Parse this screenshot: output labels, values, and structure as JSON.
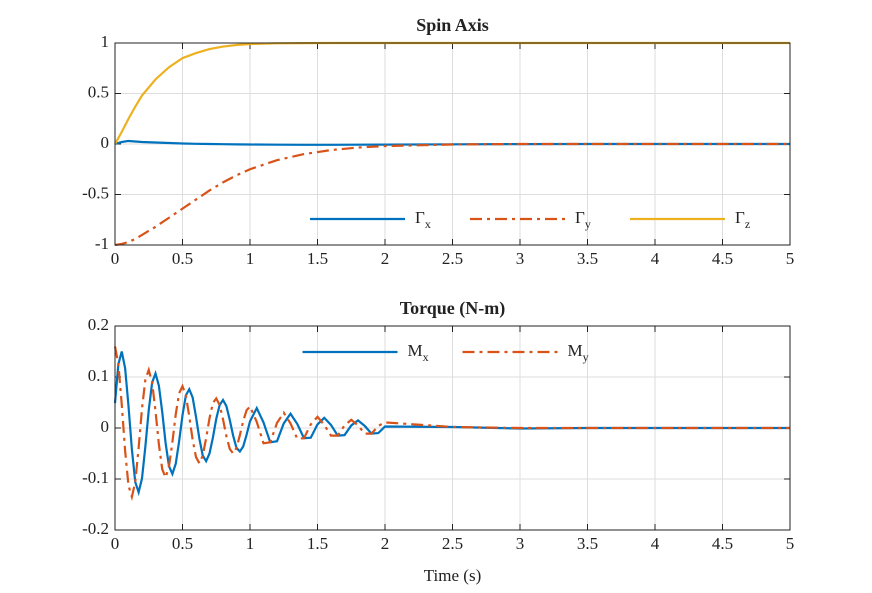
{
  "chart_data": [
    {
      "type": "line",
      "title": "Spin Axis",
      "x": [
        0,
        0.05,
        0.1,
        0.15,
        0.2,
        0.3,
        0.4,
        0.5,
        0.6,
        0.7,
        0.8,
        0.9,
        1,
        1.2,
        1.4,
        1.6,
        1.8,
        2,
        2.5,
        3,
        3.5,
        4,
        4.5,
        5
      ],
      "series": [
        {
          "name": "Γx",
          "color": "#0072BD",
          "style": "solid",
          "values": [
            0,
            0.02,
            0.03,
            0.025,
            0.02,
            0.015,
            0.01,
            0.005,
            0.002,
            0,
            -0.002,
            -0.004,
            -0.005,
            -0.007,
            -0.008,
            -0.008,
            -0.007,
            -0.006,
            -0.003,
            -0.001,
            0,
            0,
            0,
            0
          ]
        },
        {
          "name": "Γy",
          "color": "#D95319",
          "style": "dashdot",
          "values": [
            -1,
            -0.99,
            -0.97,
            -0.94,
            -0.9,
            -0.82,
            -0.73,
            -0.64,
            -0.55,
            -0.46,
            -0.38,
            -0.31,
            -0.25,
            -0.16,
            -0.1,
            -0.06,
            -0.035,
            -0.02,
            -0.005,
            0,
            0,
            0,
            0,
            0
          ]
        },
        {
          "name": "Γz",
          "color": "#EDB120",
          "style": "solid",
          "values": [
            0,
            0.12,
            0.25,
            0.37,
            0.48,
            0.64,
            0.76,
            0.85,
            0.9,
            0.94,
            0.965,
            0.98,
            0.99,
            0.997,
            0.999,
            1,
            1,
            1,
            1,
            1,
            1,
            1,
            1,
            1
          ]
        }
      ],
      "xlim": [
        0,
        5
      ],
      "xticks": [
        0,
        0.5,
        1,
        1.5,
        2,
        2.5,
        3,
        3.5,
        4,
        4.5,
        5
      ],
      "ylim": [
        -1,
        1
      ],
      "yticks": [
        -1,
        -0.5,
        0,
        0.5,
        1
      ],
      "grid": true,
      "legend": "south-east"
    },
    {
      "type": "line",
      "title": "Torque (N-m)",
      "xlabel": "Time (s)",
      "x": [
        0,
        0.025,
        0.05,
        0.075,
        0.1,
        0.125,
        0.15,
        0.175,
        0.2,
        0.225,
        0.25,
        0.275,
        0.3,
        0.325,
        0.35,
        0.375,
        0.4,
        0.425,
        0.45,
        0.475,
        0.5,
        0.525,
        0.55,
        0.575,
        0.6,
        0.625,
        0.65,
        0.675,
        0.7,
        0.725,
        0.75,
        0.775,
        0.8,
        0.825,
        0.85,
        0.875,
        0.9,
        0.925,
        0.95,
        0.975,
        1,
        1.05,
        1.1,
        1.15,
        1.2,
        1.25,
        1.3,
        1.35,
        1.4,
        1.45,
        1.5,
        1.55,
        1.6,
        1.65,
        1.7,
        1.75,
        1.8,
        1.85,
        1.9,
        1.95,
        2,
        2.5,
        3,
        3.5,
        4,
        4.5,
        5
      ],
      "series": [
        {
          "name": "Mx",
          "color": "#0072BD",
          "style": "solid",
          "values": [
            0.049,
            0.125,
            0.15,
            0.117,
            0.043,
            -0.042,
            -0.106,
            -0.126,
            -0.099,
            -0.036,
            0.035,
            0.089,
            0.107,
            0.083,
            0.031,
            -0.03,
            -0.075,
            -0.09,
            -0.07,
            -0.026,
            0.025,
            0.064,
            0.076,
            0.06,
            0.022,
            -0.021,
            -0.054,
            -0.065,
            -0.05,
            -0.019,
            0.018,
            0.045,
            0.055,
            0.043,
            0.016,
            -0.015,
            -0.039,
            -0.046,
            -0.036,
            -0.013,
            0.013,
            0.039,
            0.011,
            -0.028,
            -0.026,
            0.009,
            0.028,
            0.008,
            -0.02,
            -0.019,
            0.007,
            0.02,
            0.006,
            -0.015,
            -0.014,
            0.005,
            0.015,
            0.004,
            -0.011,
            -0.01,
            0.003,
            0.002,
            -0.001,
            0,
            0,
            0,
            0
          ]
        },
        {
          "name": "My",
          "color": "#D95319",
          "style": "dashdot",
          "values": [
            0.16,
            0.125,
            0.046,
            -0.045,
            -0.113,
            -0.135,
            -0.106,
            -0.039,
            0.038,
            0.095,
            0.114,
            0.089,
            0.033,
            -0.032,
            -0.081,
            -0.097,
            -0.075,
            -0.028,
            0.027,
            0.068,
            0.082,
            0.064,
            0.023,
            -0.023,
            -0.057,
            -0.069,
            -0.054,
            -0.02,
            0.019,
            0.049,
            0.058,
            0.045,
            0.017,
            -0.016,
            -0.041,
            -0.05,
            -0.039,
            -0.014,
            0.014,
            0.035,
            0.042,
            0.012,
            -0.03,
            -0.028,
            0.01,
            0.03,
            0.009,
            -0.021,
            -0.02,
            0.007,
            0.022,
            0.006,
            -0.015,
            -0.015,
            0.005,
            0.016,
            0.005,
            -0.011,
            -0.011,
            0.004,
            0.011,
            0.002,
            0,
            0,
            0,
            0,
            0
          ]
        }
      ],
      "xlim": [
        0,
        5
      ],
      "xticks": [
        0,
        0.5,
        1,
        1.5,
        2,
        2.5,
        3,
        3.5,
        4,
        4.5,
        5
      ],
      "ylim": [
        -0.2,
        0.2
      ],
      "yticks": [
        -0.2,
        -0.1,
        0,
        0.1,
        0.2
      ],
      "grid": true,
      "legend": "north"
    }
  ]
}
